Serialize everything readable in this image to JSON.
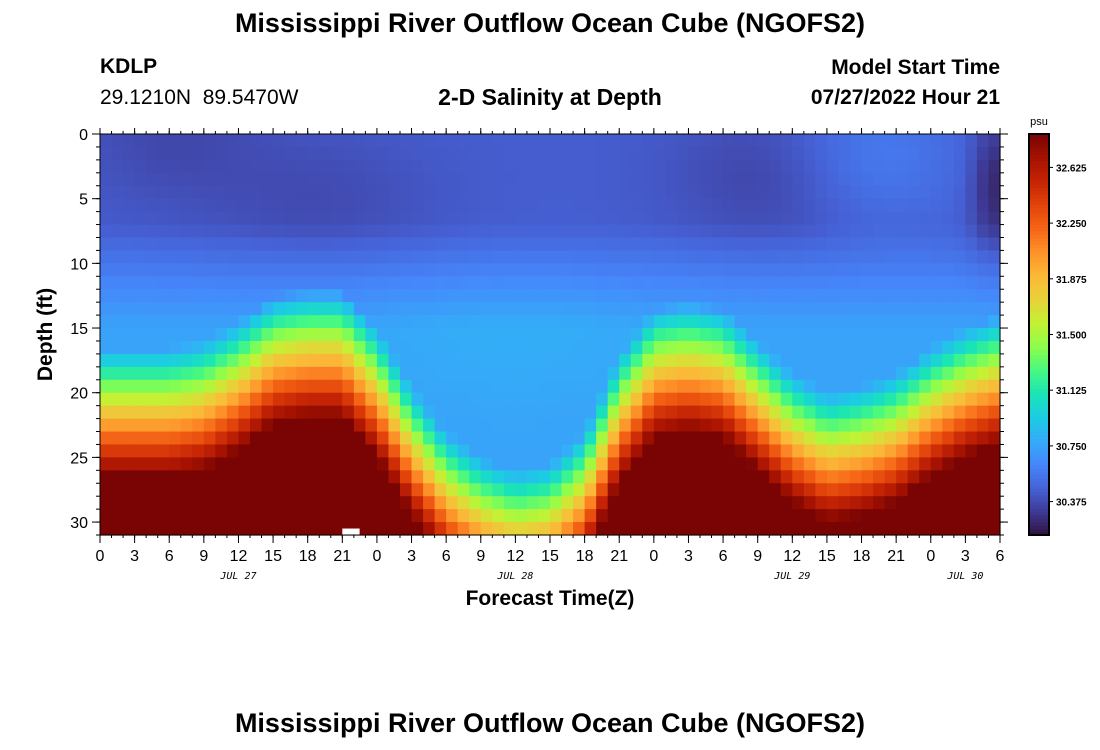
{
  "header": {
    "title": "Mississippi River Outflow Ocean Cube (NGOFS2)",
    "station_id": "KDLP",
    "station_coords": "29.1210N  89.5470W",
    "subtitle": "2-D Salinity at Depth",
    "model_start_label": "Model Start Time",
    "model_start_value": "07/27/2022 Hour 21"
  },
  "footer": {
    "title": "Mississippi River Outflow Ocean Cube (NGOFS2)"
  },
  "chart_data": {
    "type": "heatmap",
    "title": "2-D Salinity at Depth",
    "xlabel": "Forecast Time(Z)",
    "ylabel": "Depth (ft)",
    "x_unit": "hours since JUL 27 00Z",
    "xlim": [
      0,
      78
    ],
    "ylim": [
      0,
      31
    ],
    "y_inverted": true,
    "x_tick_values": [
      0,
      3,
      6,
      9,
      12,
      15,
      18,
      21,
      24,
      27,
      30,
      33,
      36,
      39,
      42,
      45,
      48,
      51,
      54,
      57,
      60,
      63,
      66,
      69,
      72,
      75,
      78
    ],
    "x_tick_labels": [
      "0",
      "3",
      "6",
      "9",
      "12",
      "15",
      "18",
      "21",
      "0",
      "3",
      "6",
      "9",
      "12",
      "15",
      "18",
      "21",
      "0",
      "3",
      "6",
      "9",
      "12",
      "15",
      "18",
      "21",
      "0",
      "3",
      "6"
    ],
    "y_tick_values": [
      0,
      5,
      10,
      15,
      20,
      25,
      30
    ],
    "y_tick_labels": [
      "0",
      "5",
      "10",
      "15",
      "20",
      "25",
      "30"
    ],
    "date_labels": [
      {
        "label": "JUL 27",
        "x": 12
      },
      {
        "label": "JUL 28",
        "x": 36
      },
      {
        "label": "JUL 29",
        "x": 60
      },
      {
        "label": "JUL 30",
        "x": 75
      }
    ],
    "colorbar": {
      "unit": "psu",
      "vmin": 30.15,
      "vmax": 32.85,
      "tick_values": [
        32.625,
        32.25,
        31.875,
        31.5,
        31.125,
        30.75,
        30.375
      ],
      "tick_labels": [
        "32.625",
        "32.250",
        "31.875",
        "31.500",
        "31.125",
        "30.750",
        "30.375"
      ],
      "colors": [
        "#30123b",
        "#3e3994",
        "#4662d7",
        "#4686fb",
        "#35abf8",
        "#1ccce3",
        "#1ae4b6",
        "#47f881",
        "#8efd4c",
        "#c2f234",
        "#e8d139",
        "#fbb938",
        "#fe922a",
        "#f56516",
        "#e2440a",
        "#c52405",
        "#a51201",
        "#7a0403"
      ]
    },
    "salinity_profile": {
      "description": "halocline depth (ft) of the salty bottom layer vs forecast hour",
      "hours": [
        0,
        6,
        9,
        12,
        15,
        18,
        21,
        24,
        27,
        30,
        33,
        36,
        39,
        42,
        45,
        48,
        51,
        54,
        57,
        60,
        63,
        66,
        69,
        72,
        75,
        78
      ],
      "halocline_ft": [
        19.5,
        19.5,
        19.0,
        17.5,
        15.5,
        15.0,
        15.0,
        18.0,
        22.5,
        26.0,
        28.0,
        29.0,
        28.5,
        26.0,
        20.0,
        16.5,
        16.0,
        16.5,
        19.0,
        21.5,
        23.0,
        22.5,
        21.5,
        19.5,
        18.0,
        17.0
      ],
      "surface_salinity_psu": 30.45,
      "mid_layer_salinity_psu": 30.75,
      "bottom_salinity_psu": 32.85
    },
    "missing_cell": {
      "x": [
        21,
        22.5
      ],
      "y": [
        30.5,
        31
      ]
    }
  }
}
